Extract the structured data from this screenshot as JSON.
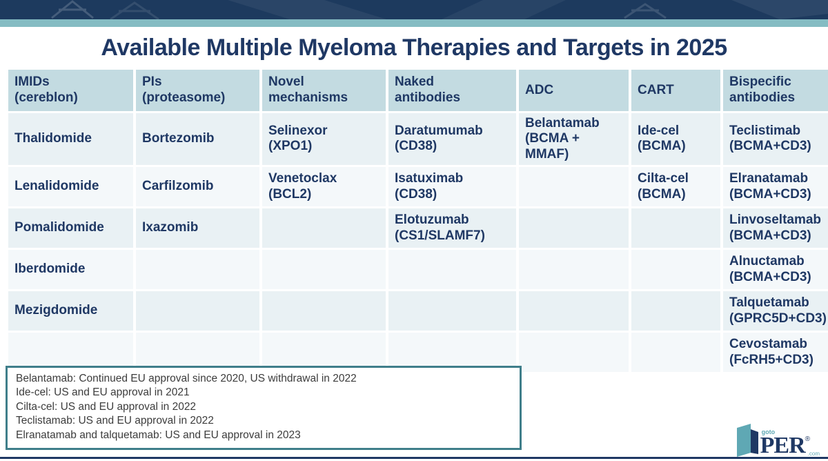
{
  "title": "Available Multiple Myeloma Therapies and Targets in 2025",
  "colors": {
    "navy": "#1f3864",
    "red": "#d9382a",
    "header_bg": "#c3dbe1",
    "row_odd_bg": "#e9f1f4",
    "row_even_bg": "#f4f8fa",
    "banner_navy": "#1d3a5e",
    "teal_stripe": "#85bcc3",
    "note_border": "#3f7e8a",
    "note_text": "#3c3c3c"
  },
  "table": {
    "columns": [
      {
        "label": "IMIDs\n(cereblon)"
      },
      {
        "label": "PIs\n(proteasome)"
      },
      {
        "label": "Novel\nmechanisms"
      },
      {
        "label": "Naked\nantibodies"
      },
      {
        "label": "ADC"
      },
      {
        "label": "CART"
      },
      {
        "label": "Bispecific\nantibodies"
      }
    ],
    "rows": [
      [
        {
          "text": "Thalidomide"
        },
        {
          "text": "Bortezomib"
        },
        {
          "text": "Selinexor\n(XPO1)"
        },
        {
          "text": "Daratumumab\n(CD38)"
        },
        {
          "text": "Belantamab\n(BCMA +\nMMAF)",
          "red": true
        },
        {
          "text": "Ide-cel\n(BCMA)"
        },
        {
          "text": "Teclistimab\n(BCMA+CD3)"
        }
      ],
      [
        {
          "text": "Lenalidomide"
        },
        {
          "text": "Carfilzomib"
        },
        {
          "text": "Venetoclax\n(BCL2)",
          "red": true
        },
        {
          "text": "Isatuximab\n(CD38)"
        },
        {
          "text": ""
        },
        {
          "text": "Cilta-cel\n(BCMA)"
        },
        {
          "text": "Elranatamab\n(BCMA+CD3)"
        }
      ],
      [
        {
          "text": "Pomalidomide"
        },
        {
          "text": "Ixazomib"
        },
        {
          "text": ""
        },
        {
          "text": "Elotuzumab\n(CS1/SLAMF7)"
        },
        {
          "text": ""
        },
        {
          "text": ""
        },
        {
          "text": "Linvoseltamab\n(BCMA+CD3)",
          "red": true
        }
      ],
      [
        {
          "text": "Iberdomide",
          "red": true
        },
        {
          "text": ""
        },
        {
          "text": ""
        },
        {
          "text": ""
        },
        {
          "text": ""
        },
        {
          "text": ""
        },
        {
          "text": "Alnuctamab\n(BCMA+CD3)",
          "red": true
        }
      ],
      [
        {
          "text": "Mezigdomide",
          "red": true
        },
        {
          "text": ""
        },
        {
          "text": ""
        },
        {
          "text": ""
        },
        {
          "text": ""
        },
        {
          "text": ""
        },
        {
          "text": "Talquetamab\n(GPRC5D+CD3)"
        }
      ],
      [
        {
          "text": ""
        },
        {
          "text": ""
        },
        {
          "text": ""
        },
        {
          "text": ""
        },
        {
          "text": ""
        },
        {
          "text": ""
        },
        {
          "text": "Cevostamab\n(FcRH5+CD3)",
          "red": true
        }
      ]
    ]
  },
  "notes": {
    "lines": [
      "Belantamab: Continued EU approval since 2020, US withdrawal in 2022",
      "Ide-cel: US and EU approval in 2021",
      "Cilta-cel: US and EU approval in 2022",
      "Teclistamab: US and EU approval in 2022",
      "Elranatamab and talquetamab: US and EU approval in 2023"
    ]
  },
  "logo": {
    "goto": "goto",
    "per": "PER",
    "reg": "®",
    "com": ".com"
  }
}
